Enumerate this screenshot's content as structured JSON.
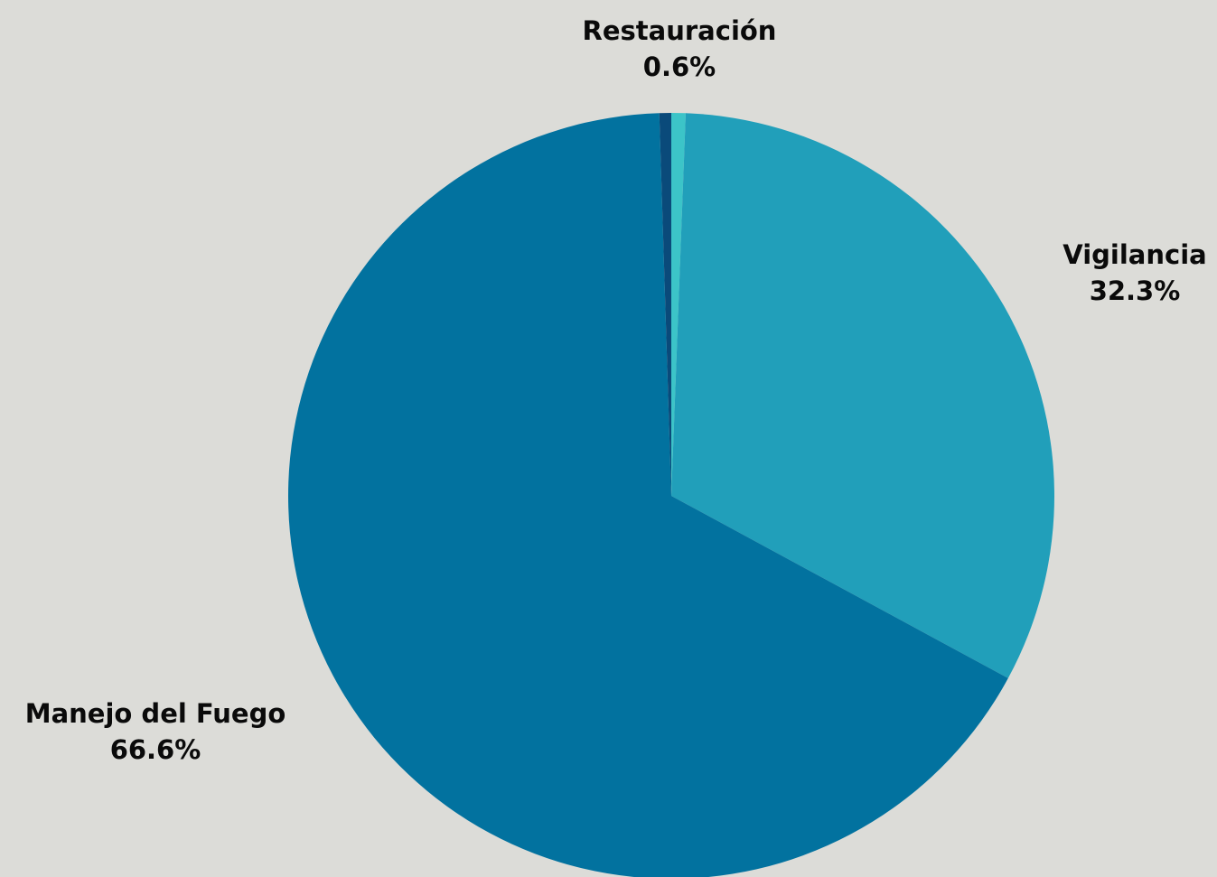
{
  "chart_data": {
    "type": "pie",
    "slices": [
      {
        "label": "Restauración",
        "value": 0.6,
        "value_label": "0.6%",
        "color": "#3cc4c8"
      },
      {
        "label": "Vigilancia",
        "value": 32.3,
        "value_label": "32.3%",
        "color": "#219fba"
      },
      {
        "label": "Manejo del Fuego",
        "value": 66.6,
        "value_label": "66.6%",
        "color": "#02729f"
      },
      {
        "label": "",
        "value": 0.5,
        "value_label": "",
        "color": "#0a4a7a"
      }
    ],
    "background": "#dcdcd8"
  }
}
